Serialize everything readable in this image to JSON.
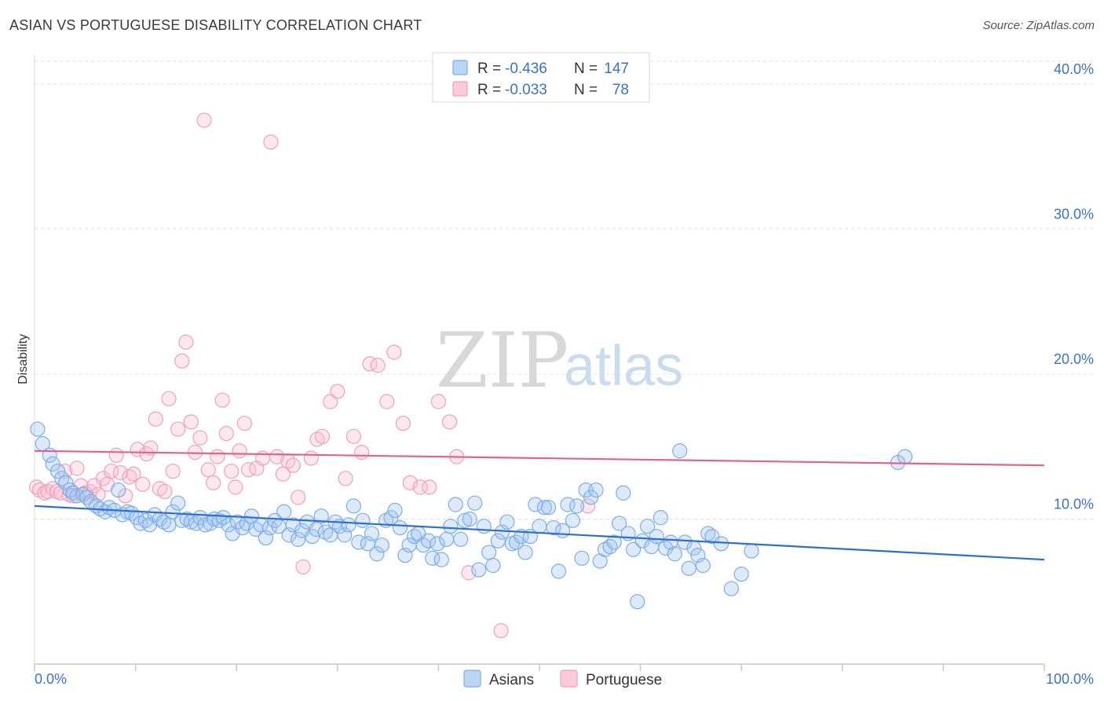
{
  "title": "ASIAN VS PORTUGUESE DISABILITY CORRELATION CHART",
  "source": "Source: ZipAtlas.com",
  "watermark": {
    "zip": "ZIP",
    "atlas": "atlas"
  },
  "colors": {
    "asian": "#7aaee8",
    "asian_line": "#2e6fd0",
    "portuguese": "#f0a0b8",
    "portuguese_line": "#e2648e",
    "axis_text": "#3b73c4"
  },
  "legend": {
    "r_label": "R =",
    "n_label": "N =",
    "asian": {
      "r": "-0.436",
      "n": "147"
    },
    "portuguese": {
      "r": "-0.033",
      "n": "78"
    }
  },
  "bottom_legend": {
    "asian": "Asians",
    "portuguese": "Portuguese"
  },
  "chart_data": {
    "type": "scatter",
    "ylabel": "Disability",
    "xlim": [
      0,
      100
    ],
    "ylim": [
      0,
      42
    ],
    "x_tick_labels": {
      "left": "0.0%",
      "right": "100.0%"
    },
    "y_ticks": [
      10,
      20,
      30,
      40
    ],
    "y_tick_labels": [
      "10.0%",
      "20.0%",
      "30.0%",
      "40.0%"
    ],
    "grid": true,
    "series": [
      {
        "name": "Asians",
        "trend": {
          "x": [
            0,
            100
          ],
          "y": [
            10.9,
            7.2
          ]
        },
        "points": [
          [
            0.3,
            16.2
          ],
          [
            0.8,
            15.2
          ],
          [
            1.5,
            14.4
          ],
          [
            1.8,
            13.8
          ],
          [
            2.3,
            13.3
          ],
          [
            2.7,
            12.8
          ],
          [
            3.1,
            12.5
          ],
          [
            3.5,
            12.0
          ],
          [
            3.8,
            11.8
          ],
          [
            4.2,
            11.6
          ],
          [
            4.8,
            11.7
          ],
          [
            5.2,
            11.5
          ],
          [
            5.6,
            11.2
          ],
          [
            6.1,
            10.9
          ],
          [
            6.5,
            10.7
          ],
          [
            7.0,
            10.5
          ],
          [
            7.4,
            10.8
          ],
          [
            7.9,
            10.6
          ],
          [
            8.3,
            12.0
          ],
          [
            8.7,
            10.3
          ],
          [
            9.2,
            10.5
          ],
          [
            9.6,
            10.4
          ],
          [
            10.1,
            10.1
          ],
          [
            10.5,
            9.7
          ],
          [
            11.0,
            9.9
          ],
          [
            11.4,
            9.6
          ],
          [
            11.9,
            10.3
          ],
          [
            12.4,
            10.0
          ],
          [
            12.8,
            9.8
          ],
          [
            13.3,
            9.6
          ],
          [
            13.7,
            10.5
          ],
          [
            14.2,
            11.1
          ],
          [
            14.6,
            9.9
          ],
          [
            15.1,
            10.0
          ],
          [
            15.5,
            9.8
          ],
          [
            16.0,
            9.7
          ],
          [
            16.4,
            10.1
          ],
          [
            16.9,
            9.6
          ],
          [
            17.4,
            9.7
          ],
          [
            17.8,
            10.0
          ],
          [
            18.3,
            9.9
          ],
          [
            18.7,
            10.1
          ],
          [
            19.2,
            9.6
          ],
          [
            19.6,
            9.0
          ],
          [
            20.1,
            9.8
          ],
          [
            20.6,
            9.4
          ],
          [
            21.0,
            9.7
          ],
          [
            21.5,
            10.2
          ],
          [
            21.9,
            9.3
          ],
          [
            22.4,
            9.6
          ],
          [
            22.9,
            8.7
          ],
          [
            23.3,
            9.4
          ],
          [
            23.8,
            9.9
          ],
          [
            24.2,
            9.5
          ],
          [
            24.7,
            10.5
          ],
          [
            25.2,
            8.9
          ],
          [
            25.6,
            9.6
          ],
          [
            26.1,
            8.6
          ],
          [
            26.5,
            9.2
          ],
          [
            27.0,
            9.8
          ],
          [
            27.5,
            8.8
          ],
          [
            27.9,
            9.3
          ],
          [
            28.4,
            10.2
          ],
          [
            28.8,
            9.1
          ],
          [
            29.3,
            8.9
          ],
          [
            29.8,
            9.8
          ],
          [
            30.2,
            9.5
          ],
          [
            30.7,
            8.9
          ],
          [
            31.1,
            9.6
          ],
          [
            31.6,
            10.9
          ],
          [
            32.1,
            8.4
          ],
          [
            32.5,
            9.9
          ],
          [
            33.0,
            8.3
          ],
          [
            33.4,
            9.0
          ],
          [
            33.9,
            7.6
          ],
          [
            34.4,
            8.2
          ],
          [
            34.8,
            9.9
          ],
          [
            35.3,
            10.1
          ],
          [
            35.7,
            10.6
          ],
          [
            36.2,
            9.4
          ],
          [
            36.7,
            7.5
          ],
          [
            37.1,
            8.2
          ],
          [
            37.6,
            8.8
          ],
          [
            38.0,
            9.0
          ],
          [
            38.5,
            8.2
          ],
          [
            39.0,
            8.5
          ],
          [
            39.4,
            7.3
          ],
          [
            39.9,
            8.3
          ],
          [
            40.3,
            7.2
          ],
          [
            40.8,
            8.6
          ],
          [
            41.2,
            9.5
          ],
          [
            41.7,
            11.0
          ],
          [
            42.2,
            8.6
          ],
          [
            42.6,
            9.9
          ],
          [
            43.1,
            10.0
          ],
          [
            43.6,
            11.1
          ],
          [
            44.0,
            6.5
          ],
          [
            44.5,
            9.5
          ],
          [
            45.0,
            7.7
          ],
          [
            45.4,
            6.8
          ],
          [
            45.9,
            8.5
          ],
          [
            46.3,
            9.1
          ],
          [
            46.8,
            9.8
          ],
          [
            47.3,
            8.3
          ],
          [
            47.7,
            8.4
          ],
          [
            48.2,
            8.8
          ],
          [
            48.6,
            7.7
          ],
          [
            49.1,
            8.8
          ],
          [
            49.6,
            11.0
          ],
          [
            50.0,
            9.5
          ],
          [
            50.5,
            10.8
          ],
          [
            50.9,
            10.8
          ],
          [
            51.4,
            9.4
          ],
          [
            51.9,
            6.4
          ],
          [
            52.3,
            9.2
          ],
          [
            52.8,
            11.0
          ],
          [
            53.3,
            9.9
          ],
          [
            53.7,
            10.9
          ],
          [
            54.2,
            7.3
          ],
          [
            54.6,
            12.0
          ],
          [
            55.1,
            11.5
          ],
          [
            55.6,
            12.0
          ],
          [
            56.0,
            7.1
          ],
          [
            56.5,
            7.9
          ],
          [
            57.0,
            8.1
          ],
          [
            57.4,
            8.4
          ],
          [
            57.9,
            9.7
          ],
          [
            58.3,
            11.8
          ],
          [
            58.8,
            9.0
          ],
          [
            59.3,
            7.9
          ],
          [
            59.7,
            4.3
          ],
          [
            60.2,
            8.5
          ],
          [
            60.7,
            9.5
          ],
          [
            61.1,
            8.1
          ],
          [
            61.6,
            8.8
          ],
          [
            62.0,
            10.1
          ],
          [
            62.5,
            8.0
          ],
          [
            63.0,
            8.4
          ],
          [
            63.4,
            7.6
          ],
          [
            63.9,
            14.7
          ],
          [
            64.4,
            8.4
          ],
          [
            64.8,
            6.6
          ],
          [
            65.3,
            8.0
          ],
          [
            65.7,
            7.5
          ],
          [
            66.2,
            6.8
          ],
          [
            66.7,
            9.0
          ],
          [
            67.1,
            8.8
          ],
          [
            68.0,
            8.3
          ],
          [
            69.0,
            5.2
          ],
          [
            70.0,
            6.2
          ],
          [
            71.0,
            7.8
          ],
          [
            85.5,
            13.9
          ],
          [
            86.2,
            14.3
          ]
        ]
      },
      {
        "name": "Portuguese",
        "trend": {
          "x": [
            0,
            100
          ],
          "y": [
            14.7,
            13.7
          ]
        },
        "points": [
          [
            0.2,
            12.2
          ],
          [
            0.5,
            12.0
          ],
          [
            1.0,
            11.8
          ],
          [
            1.3,
            11.9
          ],
          [
            1.8,
            12.1
          ],
          [
            2.2,
            11.9
          ],
          [
            2.6,
            11.8
          ],
          [
            3.0,
            13.3
          ],
          [
            3.4,
            11.7
          ],
          [
            3.8,
            11.6
          ],
          [
            4.2,
            13.5
          ],
          [
            4.6,
            12.3
          ],
          [
            5.0,
            11.8
          ],
          [
            5.5,
            11.9
          ],
          [
            5.9,
            12.3
          ],
          [
            6.3,
            11.7
          ],
          [
            6.8,
            12.8
          ],
          [
            7.2,
            12.4
          ],
          [
            7.6,
            13.3
          ],
          [
            8.1,
            14.4
          ],
          [
            8.5,
            13.2
          ],
          [
            9.0,
            11.6
          ],
          [
            9.4,
            12.9
          ],
          [
            9.8,
            13.1
          ],
          [
            10.2,
            14.8
          ],
          [
            10.7,
            12.4
          ],
          [
            11.1,
            14.5
          ],
          [
            11.5,
            14.9
          ],
          [
            12.0,
            16.9
          ],
          [
            12.4,
            12.1
          ],
          [
            12.9,
            11.9
          ],
          [
            13.3,
            18.3
          ],
          [
            13.7,
            13.3
          ],
          [
            14.2,
            16.2
          ],
          [
            14.6,
            20.9
          ],
          [
            15.0,
            22.2
          ],
          [
            15.5,
            16.7
          ],
          [
            15.9,
            14.6
          ],
          [
            16.4,
            15.6
          ],
          [
            16.8,
            37.5
          ],
          [
            17.2,
            13.4
          ],
          [
            17.7,
            12.5
          ],
          [
            18.1,
            14.3
          ],
          [
            18.6,
            18.2
          ],
          [
            19.0,
            15.9
          ],
          [
            19.5,
            13.3
          ],
          [
            19.9,
            12.2
          ],
          [
            20.3,
            14.7
          ],
          [
            20.8,
            16.6
          ],
          [
            21.2,
            13.4
          ],
          [
            22.0,
            13.5
          ],
          [
            22.6,
            14.2
          ],
          [
            23.4,
            36.0
          ],
          [
            24.0,
            14.3
          ],
          [
            24.6,
            13.1
          ],
          [
            25.1,
            14.0
          ],
          [
            25.6,
            13.7
          ],
          [
            26.1,
            11.5
          ],
          [
            26.6,
            6.7
          ],
          [
            27.4,
            14.2
          ],
          [
            28.0,
            15.5
          ],
          [
            28.5,
            15.7
          ],
          [
            29.3,
            18.1
          ],
          [
            30.0,
            18.8
          ],
          [
            30.8,
            12.8
          ],
          [
            31.6,
            15.7
          ],
          [
            32.4,
            14.6
          ],
          [
            33.2,
            20.7
          ],
          [
            34.0,
            20.6
          ],
          [
            34.9,
            18.1
          ],
          [
            35.6,
            21.5
          ],
          [
            36.5,
            16.6
          ],
          [
            37.2,
            12.5
          ],
          [
            38.2,
            12.2
          ],
          [
            39.1,
            12.2
          ],
          [
            40.0,
            18.1
          ],
          [
            41.1,
            16.7
          ],
          [
            41.8,
            14.3
          ],
          [
            43.0,
            6.3
          ],
          [
            46.2,
            2.3
          ],
          [
            54.8,
            10.9
          ]
        ]
      }
    ]
  }
}
